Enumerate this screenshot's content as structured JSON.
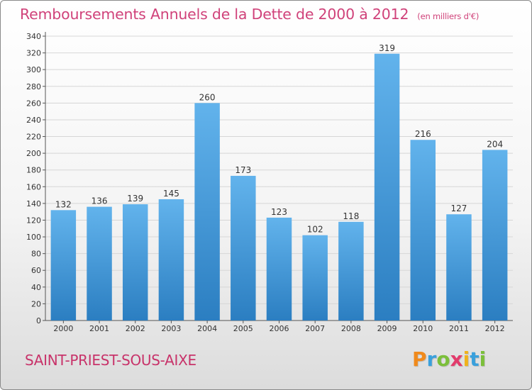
{
  "header": {
    "title": "Remboursements Annuels de la Dette de 2000 à 2012",
    "unit": "(en milliers d'€)"
  },
  "footer": {
    "commune": "SAINT-PRIEST-SOUS-AIXE",
    "logo": "Proxiti"
  },
  "colors": {
    "bar_light": "#62b3ec",
    "bar_dark": "#2b7ec1",
    "title": "#d0427a",
    "axis": "#555555",
    "grid": "#d6d6d6"
  },
  "chart_data": {
    "type": "bar",
    "title": "Remboursements Annuels de la Dette de 2000 à 2012",
    "subtitle": "(en milliers d'€)",
    "categories": [
      "2000",
      "2001",
      "2002",
      "2003",
      "2004",
      "2005",
      "2006",
      "2007",
      "2008",
      "2009",
      "2010",
      "2011",
      "2012"
    ],
    "values": [
      132,
      136,
      139,
      145,
      260,
      173,
      123,
      102,
      118,
      319,
      216,
      127,
      204
    ],
    "ylim": [
      0,
      340
    ],
    "ytick_step": 20,
    "grid": true,
    "data_labels": true
  }
}
